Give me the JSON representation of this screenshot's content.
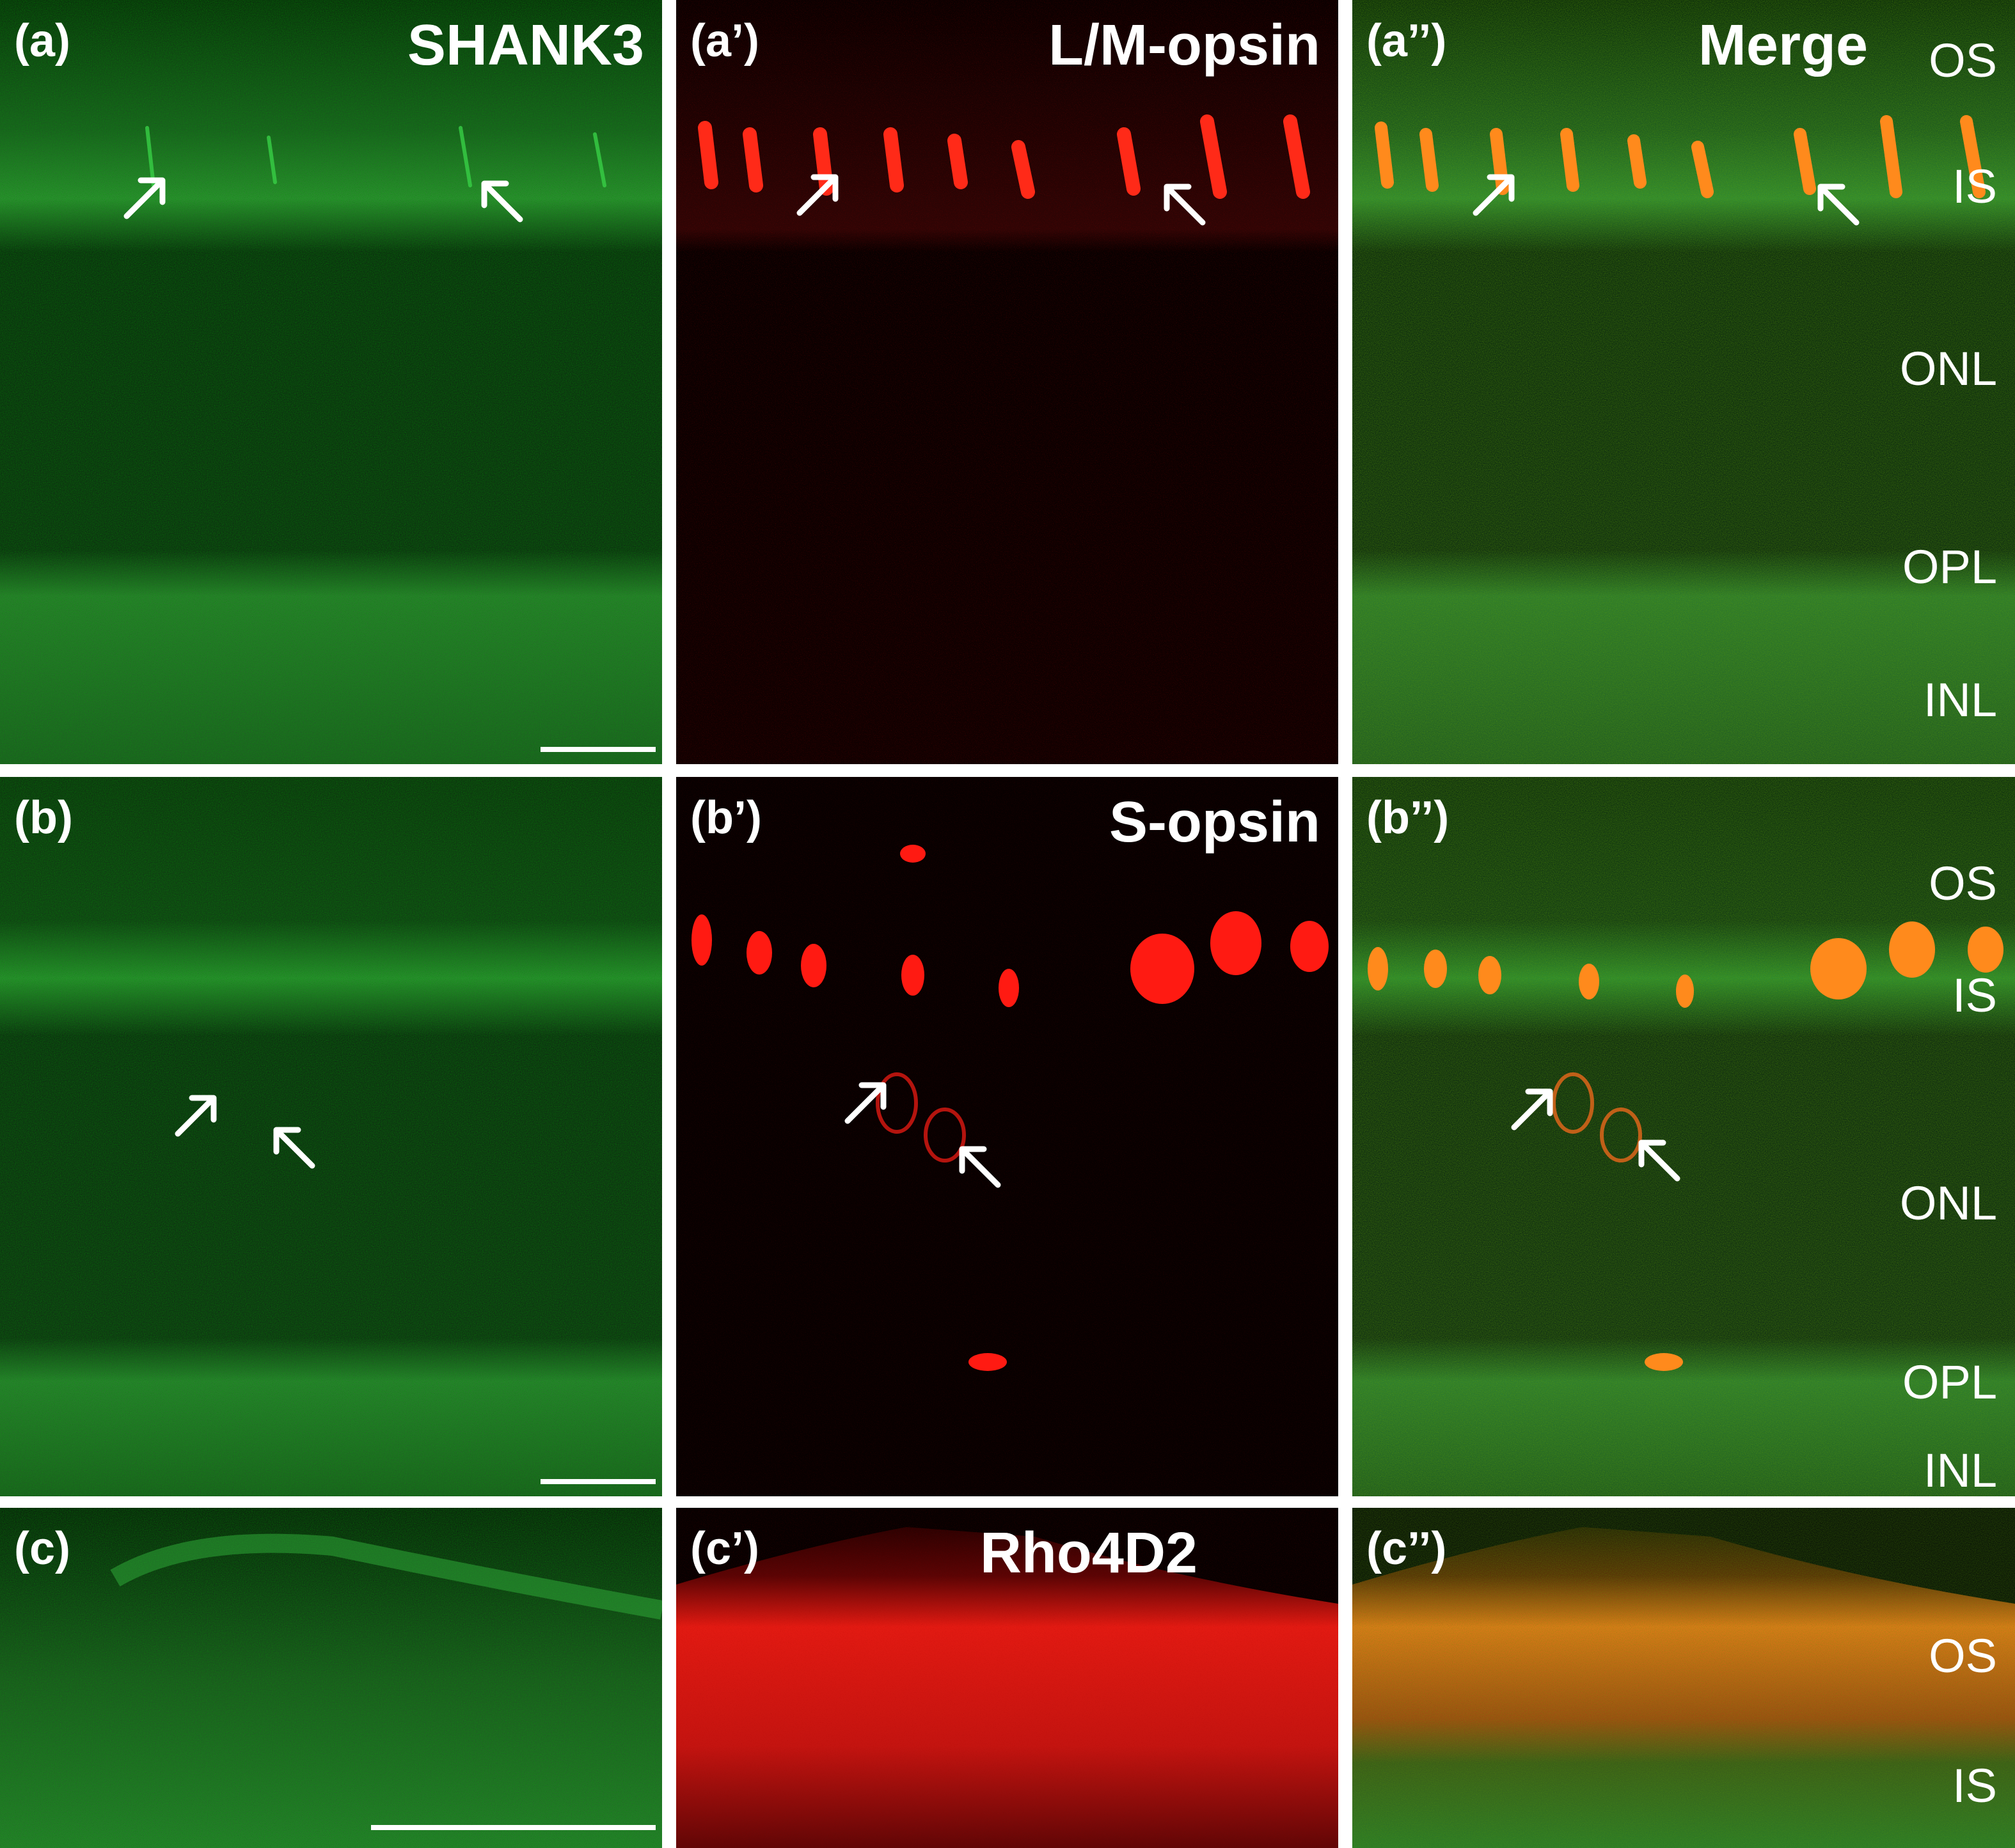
{
  "colors": {
    "green_channel": "#1fd43a",
    "red_channel": "#ff1a12",
    "merge_overlap": "#ff8a1c",
    "label_text": "#ffffff",
    "gutter": "#ffffff"
  },
  "rows": [
    {
      "panels": [
        {
          "label": "(a)",
          "marker": "SHANK3",
          "channel": "green",
          "layers": [],
          "scale_bar": true
        },
        {
          "label": "(a’)",
          "marker": "L/M-opsin",
          "channel": "red",
          "layers": [],
          "scale_bar": false
        },
        {
          "label": "(a’’)",
          "marker": "Merge",
          "channel": "merge",
          "layers": [
            "OS",
            "IS",
            "ONL",
            "OPL",
            "INL"
          ],
          "scale_bar": false
        }
      ]
    },
    {
      "panels": [
        {
          "label": "(b)",
          "marker": "",
          "channel": "green",
          "layers": [],
          "scale_bar": true
        },
        {
          "label": "(b’)",
          "marker": "S-opsin",
          "channel": "red",
          "layers": [],
          "scale_bar": false
        },
        {
          "label": "(b’’)",
          "marker": "",
          "channel": "merge",
          "layers": [
            "OS",
            "IS",
            "ONL",
            "OPL",
            "INL"
          ],
          "scale_bar": false
        }
      ]
    },
    {
      "panels": [
        {
          "label": "(c)",
          "marker": "",
          "channel": "green",
          "layers": [],
          "scale_bar": true
        },
        {
          "label": "(c’)",
          "marker": "Rho4D2",
          "channel": "red",
          "layers": [],
          "scale_bar": false
        },
        {
          "label": "(c’’)",
          "marker": "",
          "channel": "merge",
          "layers": [
            "OS",
            "IS"
          ],
          "scale_bar": false
        }
      ]
    }
  ]
}
